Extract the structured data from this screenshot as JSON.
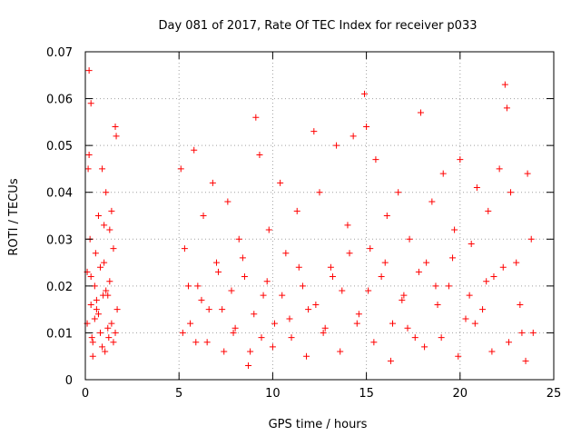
{
  "chart_data": {
    "type": "scatter",
    "title": "Day 081 of 2017, Rate Of TEC Index for receiver p033",
    "xlabel": "GPS time / hours",
    "ylabel": "ROTI / TECUs",
    "xlim": [
      0,
      25
    ],
    "ylim": [
      0,
      0.07
    ],
    "x_ticks": [
      "0",
      "5",
      "10",
      "15",
      "20",
      "25"
    ],
    "y_ticks": [
      "0",
      "0.01",
      "0.02",
      "0.03",
      "0.04",
      "0.05",
      "0.06",
      "0.07"
    ],
    "grid": true,
    "marker": "plus",
    "color": "#ff0000",
    "series": [
      {
        "x": [
          0.1,
          0.15,
          0.2,
          0.3,
          0.25,
          0.4,
          0.5,
          0.6,
          0.7,
          0.8,
          0.9,
          1.0,
          1.05,
          1.1,
          1.2,
          1.3,
          1.4,
          1.5,
          1.6,
          1.65,
          1.7,
          0.2,
          0.3,
          0.35,
          0.5,
          0.9,
          1.1,
          1.4,
          0.6,
          0.8,
          1.2,
          1.5,
          0.4,
          0.7,
          1.3,
          1.0,
          0.3,
          1.6,
          0.1,
          0.55,
          0.95,
          1.25
        ],
        "y": [
          0.012,
          0.045,
          0.066,
          0.059,
          0.03,
          0.008,
          0.02,
          0.015,
          0.035,
          0.01,
          0.045,
          0.025,
          0.006,
          0.04,
          0.018,
          0.032,
          0.012,
          0.028,
          0.054,
          0.052,
          0.015,
          0.048,
          0.022,
          0.009,
          0.013,
          0.007,
          0.019,
          0.036,
          0.017,
          0.024,
          0.011,
          0.008,
          0.005,
          0.014,
          0.021,
          0.033,
          0.016,
          0.01,
          0.023,
          0.027,
          0.018,
          0.009
        ]
      },
      {
        "x": [
          5.1,
          5.3,
          5.6,
          5.8,
          6.0,
          6.3,
          6.5,
          6.8,
          7.0,
          7.3,
          7.6,
          7.9,
          8.2,
          8.5,
          8.8,
          9.1,
          9.3,
          9.5,
          9.8,
          10.1,
          10.4,
          10.7,
          11.0,
          11.3,
          11.6,
          11.9,
          12.2,
          12.5,
          12.8,
          13.1,
          13.4,
          13.7,
          14.0,
          14.3,
          14.6,
          14.9,
          15.0,
          15.2,
          15.5,
          15.8,
          16.1,
          16.4,
          16.7,
          17.0,
          17.3,
          17.6,
          17.9,
          18.2,
          18.5,
          18.8,
          19.1,
          19.4,
          19.7,
          20.0,
          20.3,
          20.6,
          20.9,
          21.2,
          21.5,
          21.8,
          22.1,
          22.4,
          22.5,
          22.7,
          23.0,
          23.3,
          23.6,
          23.8,
          5.2,
          5.9,
          6.6,
          7.4,
          8.0,
          8.7,
          9.4,
          10.0,
          10.9,
          11.8,
          12.7,
          13.6,
          14.5,
          15.4,
          16.3,
          17.2,
          18.1,
          19.0,
          19.9,
          20.8,
          21.7,
          22.6,
          23.5,
          23.9,
          5.5,
          6.2,
          7.1,
          7.8,
          8.4,
          9.0,
          9.7,
          10.5,
          11.4,
          12.3,
          13.2,
          14.1,
          15.1,
          16.0,
          16.9,
          17.8,
          18.7,
          19.6,
          20.5,
          21.4,
          22.3,
          23.2
        ],
        "y": [
          0.045,
          0.028,
          0.012,
          0.049,
          0.02,
          0.035,
          0.008,
          0.042,
          0.025,
          0.015,
          0.038,
          0.01,
          0.03,
          0.022,
          0.006,
          0.056,
          0.048,
          0.018,
          0.032,
          0.012,
          0.042,
          0.027,
          0.009,
          0.036,
          0.02,
          0.015,
          0.053,
          0.04,
          0.011,
          0.024,
          0.05,
          0.019,
          0.033,
          0.052,
          0.014,
          0.061,
          0.054,
          0.028,
          0.047,
          0.022,
          0.035,
          0.012,
          0.04,
          0.018,
          0.03,
          0.009,
          0.057,
          0.025,
          0.038,
          0.016,
          0.044,
          0.02,
          0.032,
          0.047,
          0.013,
          0.029,
          0.041,
          0.015,
          0.036,
          0.022,
          0.045,
          0.063,
          0.058,
          0.04,
          0.025,
          0.01,
          0.044,
          0.03,
          0.01,
          0.008,
          0.015,
          0.006,
          0.011,
          0.003,
          0.009,
          0.007,
          0.013,
          0.005,
          0.01,
          0.006,
          0.012,
          0.008,
          0.004,
          0.011,
          0.007,
          0.009,
          0.005,
          0.012,
          0.006,
          0.008,
          0.004,
          0.01,
          0.02,
          0.017,
          0.023,
          0.019,
          0.026,
          0.014,
          0.021,
          0.018,
          0.024,
          0.016,
          0.022,
          0.027,
          0.019,
          0.025,
          0.017,
          0.023,
          0.02,
          0.026,
          0.018,
          0.021,
          0.024,
          0.016
        ]
      }
    ]
  }
}
